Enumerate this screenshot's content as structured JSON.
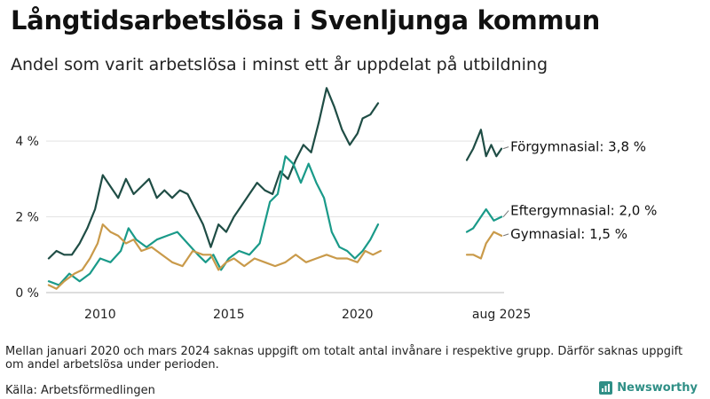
{
  "title": "Långtidsarbetslösa i Svenljunga kommun",
  "subtitle": "Andel som varit arbetslösa i minst ett år uppdelat på utbildning",
  "note": "Mellan januari 2020 och mars 2024 saknas uppgift om totalt antal invånare i respektive grupp. Därför saknas uppgift om andel arbetslösa under perioden.",
  "source": "Källa: Arbetsförmedlingen",
  "brand": {
    "name": "Newsworthy",
    "icon": "bar-chart-icon",
    "color": "#2f8f86"
  },
  "chart_data": {
    "type": "line",
    "title": "Långtidsarbetslösa i Svenljunga kommun",
    "subtitle": "Andel som varit arbetslösa i minst ett år uppdelat på utbildning",
    "xlabel": "",
    "ylabel": "",
    "ylim": [
      0,
      5.5
    ],
    "grid": true,
    "legend": "end-labels-right",
    "x_ticks": [
      {
        "value": 2010,
        "label": "2010"
      },
      {
        "value": 2015,
        "label": "2015"
      },
      {
        "value": 2020,
        "label": "2020"
      },
      {
        "value": 2025.6,
        "label": "aug 2025"
      }
    ],
    "y_ticks": [
      {
        "value": 0,
        "label": "0 %"
      },
      {
        "value": 2,
        "label": "2 %"
      },
      {
        "value": 4,
        "label": "4 %"
      }
    ],
    "gap": [
      2020.0,
      2024.25
    ],
    "series": [
      {
        "name": "Förgymnasial",
        "end_label": "Förgymnasial: 3,8 %",
        "color": "#1f4d45",
        "points": [
          [
            2008.0,
            0.9
          ],
          [
            2008.3,
            1.1
          ],
          [
            2008.6,
            1.0
          ],
          [
            2008.9,
            1.0
          ],
          [
            2009.2,
            1.3
          ],
          [
            2009.5,
            1.7
          ],
          [
            2009.8,
            2.2
          ],
          [
            2010.1,
            3.1
          ],
          [
            2010.4,
            2.8
          ],
          [
            2010.7,
            2.5
          ],
          [
            2011.0,
            3.0
          ],
          [
            2011.3,
            2.6
          ],
          [
            2011.6,
            2.8
          ],
          [
            2011.9,
            3.0
          ],
          [
            2012.2,
            2.5
          ],
          [
            2012.5,
            2.7
          ],
          [
            2012.8,
            2.5
          ],
          [
            2013.1,
            2.7
          ],
          [
            2013.4,
            2.6
          ],
          [
            2013.7,
            2.2
          ],
          [
            2014.0,
            1.8
          ],
          [
            2014.3,
            1.2
          ],
          [
            2014.6,
            1.8
          ],
          [
            2014.9,
            1.6
          ],
          [
            2015.2,
            2.0
          ],
          [
            2015.5,
            2.3
          ],
          [
            2015.8,
            2.6
          ],
          [
            2016.1,
            2.9
          ],
          [
            2016.4,
            2.7
          ],
          [
            2016.7,
            2.6
          ],
          [
            2017.0,
            3.2
          ],
          [
            2017.3,
            3.0
          ],
          [
            2017.6,
            3.5
          ],
          [
            2017.9,
            3.9
          ],
          [
            2018.2,
            3.7
          ],
          [
            2018.5,
            4.5
          ],
          [
            2018.8,
            5.4
          ],
          [
            2019.1,
            4.9
          ],
          [
            2019.4,
            4.3
          ],
          [
            2019.7,
            3.9
          ],
          [
            2020.0,
            4.2
          ],
          [
            2020.2,
            4.6
          ],
          [
            2020.5,
            4.7
          ],
          [
            2020.8,
            5.0
          ],
          [
            2024.25,
            3.5
          ],
          [
            2024.5,
            3.8
          ],
          [
            2024.8,
            4.3
          ],
          [
            2025.0,
            3.6
          ],
          [
            2025.2,
            3.9
          ],
          [
            2025.4,
            3.6
          ],
          [
            2025.6,
            3.8
          ]
        ]
      },
      {
        "name": "Eftergymnasial",
        "end_label": "Eftergymnasial: 2,0 %",
        "color": "#1a9a89",
        "points": [
          [
            2008.0,
            0.3
          ],
          [
            2008.4,
            0.2
          ],
          [
            2008.8,
            0.5
          ],
          [
            2009.2,
            0.3
          ],
          [
            2009.6,
            0.5
          ],
          [
            2010.0,
            0.9
          ],
          [
            2010.4,
            0.8
          ],
          [
            2010.8,
            1.1
          ],
          [
            2011.1,
            1.7
          ],
          [
            2011.4,
            1.4
          ],
          [
            2011.8,
            1.2
          ],
          [
            2012.2,
            1.4
          ],
          [
            2012.6,
            1.5
          ],
          [
            2013.0,
            1.6
          ],
          [
            2013.4,
            1.3
          ],
          [
            2013.8,
            1.0
          ],
          [
            2014.1,
            0.8
          ],
          [
            2014.4,
            1.0
          ],
          [
            2014.7,
            0.6
          ],
          [
            2015.0,
            0.9
          ],
          [
            2015.4,
            1.1
          ],
          [
            2015.8,
            1.0
          ],
          [
            2016.2,
            1.3
          ],
          [
            2016.6,
            2.4
          ],
          [
            2016.9,
            2.6
          ],
          [
            2017.2,
            3.6
          ],
          [
            2017.5,
            3.4
          ],
          [
            2017.8,
            2.9
          ],
          [
            2018.1,
            3.4
          ],
          [
            2018.4,
            2.9
          ],
          [
            2018.7,
            2.5
          ],
          [
            2019.0,
            1.6
          ],
          [
            2019.3,
            1.2
          ],
          [
            2019.6,
            1.1
          ],
          [
            2019.9,
            0.9
          ],
          [
            2020.2,
            1.1
          ],
          [
            2020.5,
            1.4
          ],
          [
            2020.8,
            1.8
          ],
          [
            2024.25,
            1.6
          ],
          [
            2024.5,
            1.7
          ],
          [
            2024.8,
            2.0
          ],
          [
            2025.0,
            2.2
          ],
          [
            2025.3,
            1.9
          ],
          [
            2025.6,
            2.0
          ]
        ]
      },
      {
        "name": "Gymnasial",
        "end_label": "Gymnasial: 1,5 %",
        "color": "#c99a4a",
        "points": [
          [
            2008.0,
            0.2
          ],
          [
            2008.3,
            0.1
          ],
          [
            2008.6,
            0.3
          ],
          [
            2009.0,
            0.5
          ],
          [
            2009.3,
            0.6
          ],
          [
            2009.6,
            0.9
          ],
          [
            2009.9,
            1.3
          ],
          [
            2010.1,
            1.8
          ],
          [
            2010.4,
            1.6
          ],
          [
            2010.7,
            1.5
          ],
          [
            2011.0,
            1.3
          ],
          [
            2011.3,
            1.4
          ],
          [
            2011.6,
            1.1
          ],
          [
            2012.0,
            1.2
          ],
          [
            2012.4,
            1.0
          ],
          [
            2012.8,
            0.8
          ],
          [
            2013.2,
            0.7
          ],
          [
            2013.6,
            1.1
          ],
          [
            2014.0,
            1.0
          ],
          [
            2014.3,
            1.0
          ],
          [
            2014.6,
            0.6
          ],
          [
            2014.9,
            0.8
          ],
          [
            2015.2,
            0.9
          ],
          [
            2015.6,
            0.7
          ],
          [
            2016.0,
            0.9
          ],
          [
            2016.4,
            0.8
          ],
          [
            2016.8,
            0.7
          ],
          [
            2017.2,
            0.8
          ],
          [
            2017.6,
            1.0
          ],
          [
            2018.0,
            0.8
          ],
          [
            2018.4,
            0.9
          ],
          [
            2018.8,
            1.0
          ],
          [
            2019.2,
            0.9
          ],
          [
            2019.6,
            0.9
          ],
          [
            2020.0,
            0.8
          ],
          [
            2020.3,
            1.1
          ],
          [
            2020.6,
            1.0
          ],
          [
            2020.9,
            1.1
          ],
          [
            2024.25,
            1.0
          ],
          [
            2024.5,
            1.0
          ],
          [
            2024.8,
            0.9
          ],
          [
            2025.0,
            1.3
          ],
          [
            2025.3,
            1.6
          ],
          [
            2025.6,
            1.5
          ]
        ]
      }
    ]
  }
}
